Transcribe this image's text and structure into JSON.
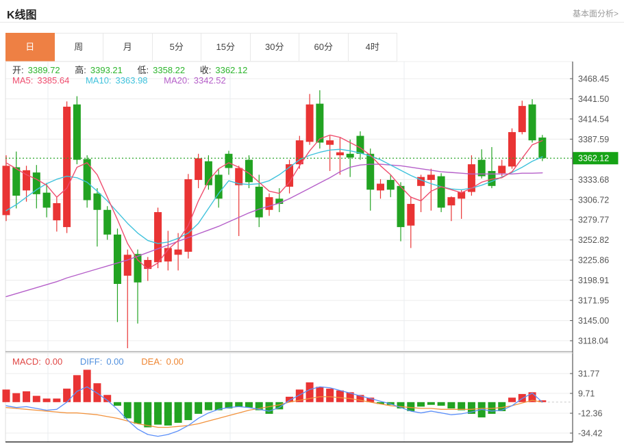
{
  "header": {
    "title": "K线图",
    "link": "基本面分析>"
  },
  "tabs": {
    "items": [
      {
        "label": "日",
        "active": true
      },
      {
        "label": "周",
        "active": false
      },
      {
        "label": "月",
        "active": false
      },
      {
        "label": "5分",
        "active": false
      },
      {
        "label": "15分",
        "active": false
      },
      {
        "label": "30分",
        "active": false
      },
      {
        "label": "60分",
        "active": false
      },
      {
        "label": "4时",
        "active": false
      }
    ],
    "active_bg": "#ee8044"
  },
  "ohlc_legend": {
    "open_label": "开:",
    "open": "3389.72",
    "high_label": "高:",
    "high": "3393.21",
    "low_label": "低:",
    "low": "3358.22",
    "close_label": "收:",
    "close": "3362.12",
    "value_color": "#2cb52c"
  },
  "ma_legend": {
    "ma5_label": "MA5:",
    "ma5": "3385.64",
    "ma5_color": "#ef4d6e",
    "ma10_label": "MA10:",
    "ma10": "3363.98",
    "ma10_color": "#3fc2dc",
    "ma20_label": "MA20:",
    "ma20": "3342.52",
    "ma20_color": "#b55fc9"
  },
  "macd_legend": {
    "macd_label": "MACD:",
    "macd": "0.00",
    "macd_color": "#e04543",
    "diff_label": "DIFF:",
    "diff": "0.00",
    "diff_color": "#4f8fdd",
    "dea_label": "DEA:",
    "dea": "0.00",
    "dea_color": "#ef8632"
  },
  "colors": {
    "up": "#e93434",
    "down": "#22a322",
    "current_line": "#2aa52a",
    "badge_bg": "#16a316",
    "badge_text": "#ffffff",
    "grid": "#ececec",
    "vgrid": "#e9edf0",
    "axis": "#555555",
    "tick_text": "#555555",
    "diff_line": "#5b8ff9",
    "dea_line": "#f2923c"
  },
  "chart_data": {
    "type": "candlestick",
    "title": "K线图",
    "period_selected": "日",
    "main": {
      "ylim": [
        3105,
        3491
      ],
      "yticks": [
        3468.45,
        3441.5,
        3414.54,
        3387.59,
        3333.68,
        3306.72,
        3279.77,
        3252.82,
        3225.86,
        3198.91,
        3171.95,
        3145.0,
        3118.04
      ],
      "current_price": 3362.12,
      "last_ohlc": {
        "open": 3389.72,
        "high": 3393.21,
        "low": 3358.22,
        "close": 3362.12
      },
      "ma_values": {
        "ma5": 3385.64,
        "ma10": 3363.98,
        "ma20": 3342.52
      },
      "candles_ohlc": [
        [
          3286,
          3366,
          3278,
          3352
        ],
        [
          3350,
          3371,
          3295,
          3312
        ],
        [
          3319,
          3352,
          3304,
          3346
        ],
        [
          3343,
          3353,
          3295,
          3314
        ],
        [
          3316,
          3329,
          3283,
          3296
        ],
        [
          3279,
          3310,
          3264,
          3302
        ],
        [
          3270,
          3438,
          3262,
          3431
        ],
        [
          3434,
          3445,
          3354,
          3360
        ],
        [
          3361,
          3366,
          3296,
          3306
        ],
        [
          3315,
          3322,
          3244,
          3293
        ],
        [
          3293,
          3298,
          3253,
          3260
        ],
        [
          3260,
          3268,
          3143,
          3194
        ],
        [
          3205,
          3240,
          3108,
          3233
        ],
        [
          3234,
          3240,
          3141,
          3196
        ],
        [
          3214,
          3230,
          3198,
          3226
        ],
        [
          3223,
          3296,
          3215,
          3290
        ],
        [
          3224,
          3265,
          3212,
          3242
        ],
        [
          3233,
          3262,
          3212,
          3240
        ],
        [
          3237,
          3341,
          3228,
          3334
        ],
        [
          3333,
          3368,
          3322,
          3362
        ],
        [
          3358,
          3366,
          3320,
          3326
        ],
        [
          3340,
          3348,
          3296,
          3308
        ],
        [
          3368,
          3372,
          3340,
          3349
        ],
        [
          3326,
          3352,
          3258,
          3349
        ],
        [
          3360,
          3366,
          3322,
          3330
        ],
        [
          3324,
          3340,
          3270,
          3283
        ],
        [
          3293,
          3315,
          3285,
          3310
        ],
        [
          3308,
          3322,
          3290,
          3301
        ],
        [
          3324,
          3360,
          3315,
          3354
        ],
        [
          3354,
          3392,
          3348,
          3386
        ],
        [
          3384,
          3448,
          3380,
          3434
        ],
        [
          3435,
          3453,
          3375,
          3383
        ],
        [
          3380,
          3392,
          3345,
          3386
        ],
        [
          3366,
          3390,
          3340,
          3370
        ],
        [
          3368,
          3387,
          3337,
          3363
        ],
        [
          3392,
          3398,
          3360,
          3368
        ],
        [
          3368,
          3375,
          3292,
          3320
        ],
        [
          3319,
          3334,
          3308,
          3328
        ],
        [
          3333,
          3340,
          3310,
          3320
        ],
        [
          3325,
          3330,
          3251,
          3270
        ],
        [
          3272,
          3311,
          3242,
          3301
        ],
        [
          3325,
          3340,
          3290,
          3337
        ],
        [
          3333,
          3348,
          3292,
          3340
        ],
        [
          3338,
          3342,
          3290,
          3296
        ],
        [
          3299,
          3311,
          3278,
          3310
        ],
        [
          3308,
          3320,
          3281,
          3317
        ],
        [
          3317,
          3366,
          3312,
          3354
        ],
        [
          3360,
          3374,
          3335,
          3338
        ],
        [
          3345,
          3377,
          3322,
          3325
        ],
        [
          3342,
          3360,
          3338,
          3352
        ],
        [
          3351,
          3402,
          3348,
          3397
        ],
        [
          3397,
          3439,
          3394,
          3432
        ],
        [
          3434,
          3441,
          3383,
          3386
        ],
        [
          3389.72,
          3393.21,
          3358.22,
          3362.12
        ]
      ],
      "ma5_series": [
        3356,
        3348,
        3340,
        3334,
        3326,
        3310,
        3322,
        3350,
        3356,
        3340,
        3310,
        3280,
        3248,
        3226,
        3214,
        3222,
        3240,
        3252,
        3272,
        3305,
        3332,
        3348,
        3356,
        3350,
        3342,
        3330,
        3318,
        3315,
        3330,
        3352,
        3372,
        3388,
        3393,
        3390,
        3383,
        3376,
        3366,
        3352,
        3340,
        3324,
        3310,
        3305,
        3318,
        3324,
        3320,
        3316,
        3322,
        3330,
        3334,
        3336,
        3344,
        3362,
        3380,
        3385.64
      ],
      "ma10_series": [
        3292,
        3300,
        3310,
        3320,
        3328,
        3334,
        3338,
        3336,
        3330,
        3318,
        3305,
        3290,
        3275,
        3262,
        3252,
        3248,
        3250,
        3255,
        3262,
        3275,
        3295,
        3315,
        3332,
        3328,
        3327,
        3328,
        3332,
        3340,
        3350,
        3360,
        3366,
        3370,
        3373,
        3374,
        3372,
        3369,
        3365,
        3360,
        3353,
        3346,
        3339,
        3333,
        3328,
        3324,
        3321,
        3320,
        3322,
        3326,
        3331,
        3337,
        3343,
        3350,
        3358,
        3363.98
      ],
      "ma20_series": [
        3177,
        3181,
        3185,
        3189,
        3193,
        3197,
        3202,
        3206,
        3210,
        3214,
        3218,
        3222,
        3226,
        3231,
        3236,
        3241,
        3246,
        3251,
        3256,
        3261,
        3266,
        3271,
        3277,
        3283,
        3289,
        3294,
        3298,
        3302,
        3308,
        3315,
        3322,
        3329,
        3336,
        3344,
        3350,
        3353,
        3354,
        3354,
        3353,
        3352,
        3350,
        3348,
        3346,
        3344,
        3343,
        3342,
        3341,
        3341,
        3341,
        3341,
        3341,
        3342,
        3342,
        3342.52
      ]
    },
    "macd": {
      "yticks": [
        31.77,
        9.71,
        -12.36,
        -34.42
      ],
      "bars": [
        14,
        10,
        12,
        7,
        4,
        4,
        15,
        30,
        36,
        21,
        8,
        -4,
        -18,
        -24,
        -28,
        -25,
        -26,
        -23,
        -20,
        -13,
        -9,
        -9,
        -7,
        -5,
        -6,
        -9,
        -13,
        -8,
        6,
        14,
        22,
        17,
        15,
        13,
        11,
        8,
        5,
        -2,
        -3,
        -7,
        -10,
        -5,
        -3,
        -4,
        -7,
        -9,
        -13,
        -17,
        -13,
        -10,
        5,
        9,
        11,
        2
      ],
      "diff_series": [
        -4,
        -6,
        -5,
        -7,
        -9,
        -8,
        0,
        12,
        17,
        10,
        2,
        -8,
        -20,
        -30,
        -36,
        -38,
        -36,
        -32,
        -26,
        -18,
        -12,
        -8,
        -6,
        -5,
        -6,
        -8,
        -10,
        -6,
        2,
        8,
        14,
        17,
        16,
        13,
        10,
        7,
        4,
        1,
        -2,
        -6,
        -10,
        -12,
        -10,
        -12,
        -14,
        -13,
        -11,
        -8,
        -10,
        -9,
        -4,
        4,
        10,
        0
      ],
      "dea_series": [
        -6,
        -7,
        -8,
        -9,
        -10,
        -11,
        -12,
        -12,
        -13,
        -14,
        -16,
        -18,
        -21,
        -24,
        -26,
        -28,
        -28,
        -27,
        -26,
        -24,
        -21,
        -18,
        -15,
        -12,
        -9,
        -7,
        -5,
        -3,
        0,
        2,
        4,
        6,
        6,
        5,
        4,
        2,
        0,
        -2,
        -4,
        -5,
        -6,
        -7,
        -7,
        -8,
        -8,
        -8,
        -8,
        -7,
        -7,
        -6,
        -4,
        -1,
        2,
        0
      ]
    }
  }
}
